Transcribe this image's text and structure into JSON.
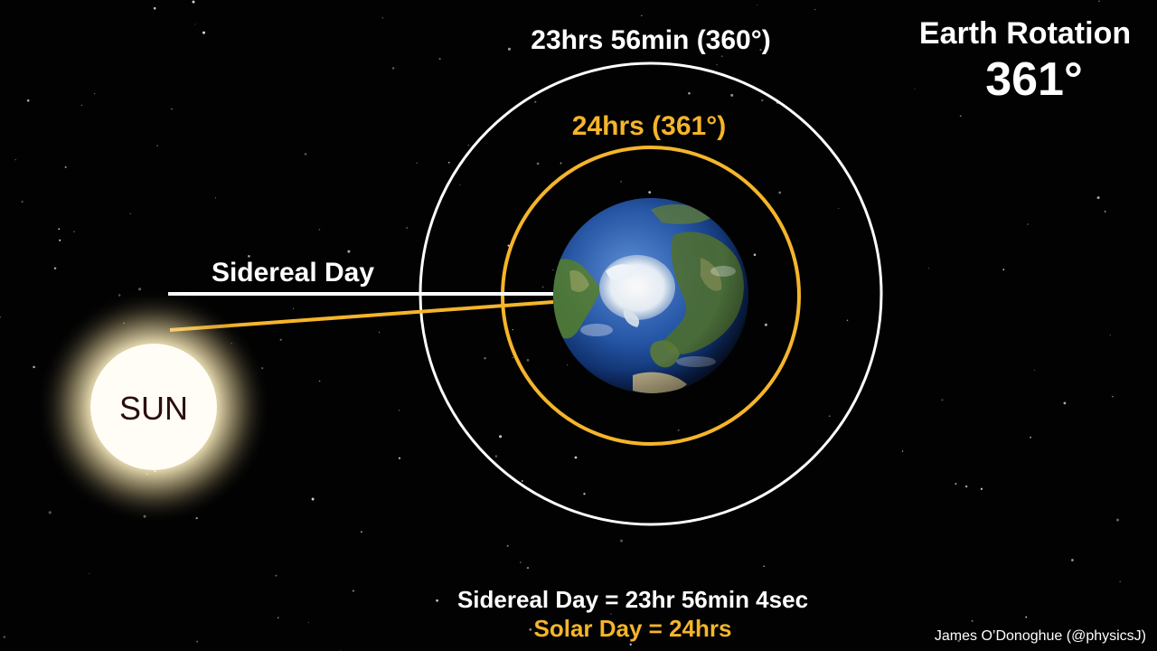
{
  "title": {
    "line1": "Earth Rotation",
    "line2": "361°"
  },
  "orbits": {
    "outer_label": "23hrs 56min (360°)",
    "inner_label": "24hrs (361°)"
  },
  "sidereal_line_label": "Sidereal Day",
  "sun_label": "SUN",
  "equations": {
    "sidereal": "Sidereal Day = 23hr 56min 4sec",
    "solar": "Solar Day = 24hrs"
  },
  "credit": "James O’Donoghue (@physicsJ)",
  "colors": {
    "background": "#000000",
    "white": "#ffffff",
    "solar": "#f5b52a",
    "sun_core": "#fffdf5",
    "sun_text": "#2a0e0e"
  }
}
